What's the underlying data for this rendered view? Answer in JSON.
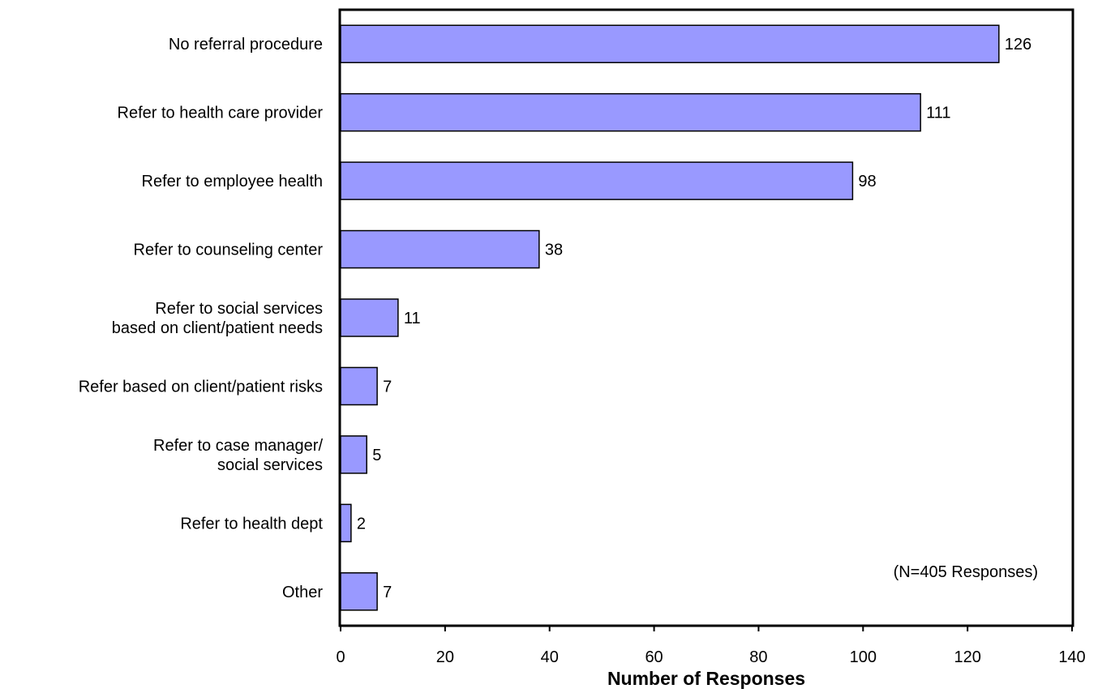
{
  "chart_data": {
    "type": "bar",
    "orientation": "horizontal",
    "categories": [
      [
        "No referral procedure"
      ],
      [
        "Refer to health care provider"
      ],
      [
        "Refer to employee health"
      ],
      [
        "Refer to counseling center"
      ],
      [
        "Refer to social services",
        "based on client/patient needs"
      ],
      [
        "Refer based on client/patient risks"
      ],
      [
        "Refer to case manager/",
        "social services"
      ],
      [
        "Refer to health dept"
      ],
      [
        "Other"
      ]
    ],
    "values": [
      126,
      111,
      98,
      38,
      11,
      7,
      5,
      2,
      7
    ],
    "title": "",
    "xlabel": "Number of Responses",
    "ylabel": "",
    "xlim": [
      0,
      140
    ],
    "xticks": [
      0,
      20,
      40,
      60,
      80,
      100,
      120,
      140
    ],
    "note": "(N=405 Responses)",
    "grid": false,
    "legend": false,
    "colors": {
      "bar_fill": "#9999ff",
      "bar_stroke": "#000000",
      "axis": "#000000"
    }
  }
}
